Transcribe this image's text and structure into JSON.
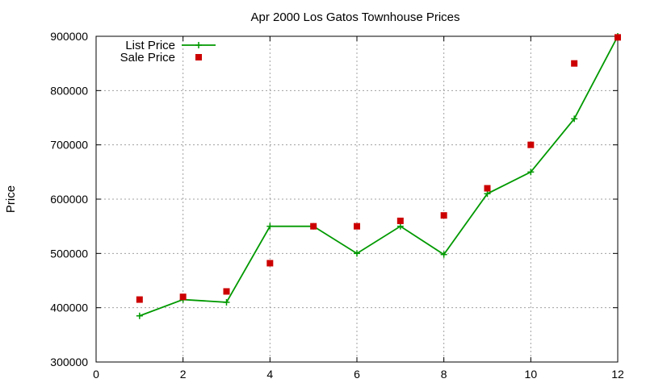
{
  "chart_data": {
    "type": "line",
    "title": "Apr 2000 Los Gatos Townhouse Prices",
    "xlabel": "",
    "ylabel": "Price",
    "xlim": [
      0,
      12
    ],
    "ylim": [
      300000,
      900000
    ],
    "x_ticks": [
      "0",
      "2",
      "4",
      "6",
      "8",
      "10",
      "12"
    ],
    "y_ticks": [
      "300000",
      "400000",
      "500000",
      "600000",
      "700000",
      "800000",
      "900000"
    ],
    "grid": true,
    "legend_position": "top-left",
    "series": [
      {
        "name": "List Price",
        "style": "line+cross",
        "color": "#009900",
        "x": [
          1,
          2,
          3,
          4,
          5,
          6,
          7,
          8,
          9,
          10,
          11,
          12
        ],
        "y": [
          385000,
          415000,
          410000,
          550000,
          550000,
          500000,
          550000,
          498000,
          610000,
          650000,
          748000,
          900000
        ]
      },
      {
        "name": "Sale Price",
        "style": "square-points",
        "color": "#cc0000",
        "x": [
          1,
          2,
          3,
          4,
          5,
          6,
          7,
          8,
          9,
          10,
          11,
          12
        ],
        "y": [
          415000,
          420000,
          430000,
          482000,
          550000,
          550000,
          560000,
          570000,
          620000,
          700000,
          850000,
          898000
        ]
      }
    ]
  }
}
